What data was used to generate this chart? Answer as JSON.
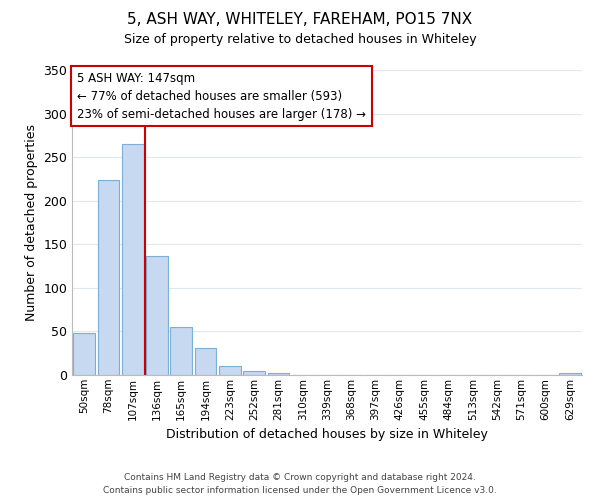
{
  "title": "5, ASH WAY, WHITELEY, FAREHAM, PO15 7NX",
  "subtitle": "Size of property relative to detached houses in Whiteley",
  "xlabel": "Distribution of detached houses by size in Whiteley",
  "ylabel": "Number of detached properties",
  "bar_color": "#c6d9f0",
  "bar_edge_color": "#7bafd4",
  "vline_color": "#cc0000",
  "categories": [
    "50sqm",
    "78sqm",
    "107sqm",
    "136sqm",
    "165sqm",
    "194sqm",
    "223sqm",
    "252sqm",
    "281sqm",
    "310sqm",
    "339sqm",
    "368sqm",
    "397sqm",
    "426sqm",
    "455sqm",
    "484sqm",
    "513sqm",
    "542sqm",
    "571sqm",
    "600sqm",
    "629sqm"
  ],
  "values": [
    48,
    224,
    265,
    136,
    55,
    31,
    10,
    5,
    2,
    0,
    0,
    0,
    0,
    0,
    0,
    0,
    0,
    0,
    0,
    0,
    2
  ],
  "ylim": [
    0,
    350
  ],
  "yticks": [
    0,
    50,
    100,
    150,
    200,
    250,
    300,
    350
  ],
  "vline_after_bar": 3,
  "annotation_title": "5 ASH WAY: 147sqm",
  "annotation_line1": "← 77% of detached houses are smaller (593)",
  "annotation_line2": "23% of semi-detached houses are larger (178) →",
  "annotation_box_color": "#ffffff",
  "annotation_box_edge_color": "#cc0000",
  "footer_line1": "Contains HM Land Registry data © Crown copyright and database right 2024.",
  "footer_line2": "Contains public sector information licensed under the Open Government Licence v3.0.",
  "background_color": "#ffffff",
  "grid_color": "#dde8f5"
}
